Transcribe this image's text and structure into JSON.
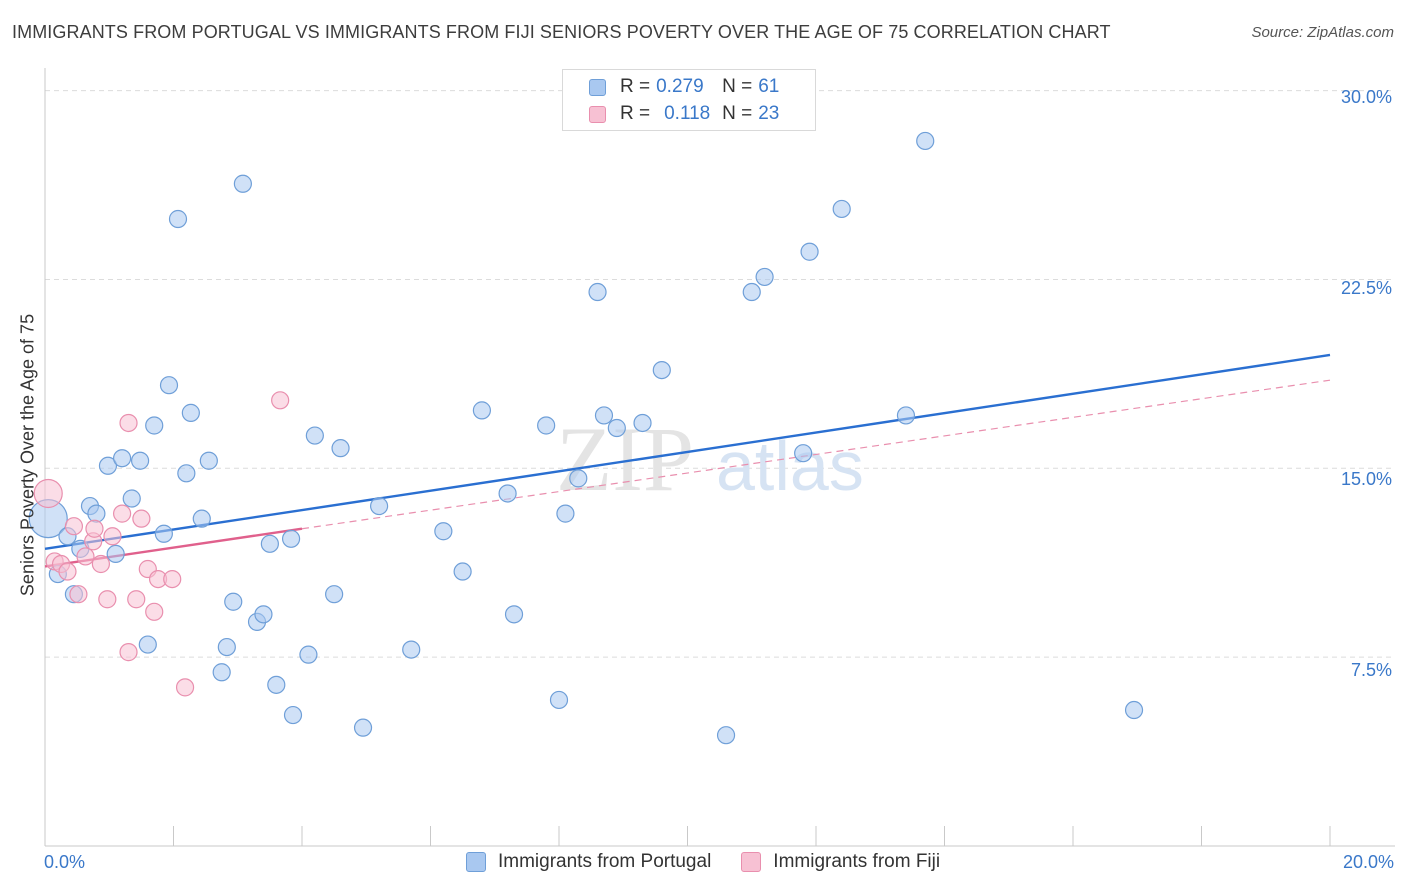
{
  "title": "IMMIGRANTS FROM PORTUGAL VS IMMIGRANTS FROM FIJI SENIORS POVERTY OVER THE AGE OF 75 CORRELATION CHART",
  "source": "Source: ZipAtlas.com",
  "watermark": {
    "zip": "ZIP",
    "atlas": "atlas"
  },
  "legend_top": {
    "rows": [
      {
        "r_label": "R =",
        "r_value": "0.279",
        "n_label": "N =",
        "n_value": "61",
        "color": "#a9c8f0",
        "border": "#6f9fd8"
      },
      {
        "r_label": "R =",
        "r_value": "0.118",
        "n_label": "N =",
        "n_value": "23",
        "color": "#f7c1d3",
        "border": "#e98fae"
      }
    ]
  },
  "chart_data": {
    "type": "scatter",
    "title": "IMMIGRANTS FROM PORTUGAL VS IMMIGRANTS FROM FIJI SENIORS POVERTY OVER THE AGE OF 75 CORRELATION CHART",
    "xlabel": "",
    "ylabel": "Seniors Poverty Over the Age of 75",
    "xlim": [
      0,
      20
    ],
    "ylim": [
      0,
      30.5
    ],
    "x_tick_labels": [
      "0.0%",
      "20.0%"
    ],
    "y_ticks": [
      7.5,
      15.0,
      22.5,
      30.0
    ],
    "y_tick_labels": [
      "7.5%",
      "15.0%",
      "22.5%",
      "30.0%"
    ],
    "legend_position": "top-center",
    "series": [
      {
        "name": "Immigrants from Portugal",
        "color": "#a9c8f0",
        "edge": "#6f9fd8",
        "trend": {
          "x1": 0,
          "y1": 11.8,
          "x2": 20,
          "y2": 19.5,
          "color": "#2a6fd1"
        },
        "points": [
          [
            0.05,
            13.0
          ],
          [
            0.2,
            10.8
          ],
          [
            0.35,
            12.3
          ],
          [
            0.45,
            10.0
          ],
          [
            0.55,
            11.8
          ],
          [
            0.7,
            13.5
          ],
          [
            0.8,
            13.2
          ],
          [
            0.98,
            15.1
          ],
          [
            1.1,
            11.6
          ],
          [
            1.2,
            15.4
          ],
          [
            1.35,
            13.8
          ],
          [
            1.48,
            15.3
          ],
          [
            1.6,
            8.0
          ],
          [
            1.7,
            16.7
          ],
          [
            1.85,
            12.4
          ],
          [
            1.93,
            18.3
          ],
          [
            2.07,
            24.9
          ],
          [
            2.2,
            14.8
          ],
          [
            2.27,
            17.2
          ],
          [
            2.44,
            13.0
          ],
          [
            2.55,
            15.3
          ],
          [
            2.75,
            6.9
          ],
          [
            2.83,
            7.9
          ],
          [
            2.93,
            9.7
          ],
          [
            3.08,
            26.3
          ],
          [
            3.3,
            8.9
          ],
          [
            3.4,
            9.2
          ],
          [
            3.5,
            12.0
          ],
          [
            3.6,
            6.4
          ],
          [
            3.83,
            12.2
          ],
          [
            3.86,
            5.2
          ],
          [
            4.1,
            7.6
          ],
          [
            4.2,
            16.3
          ],
          [
            4.5,
            10.0
          ],
          [
            4.6,
            15.8
          ],
          [
            4.95,
            4.7
          ],
          [
            5.2,
            13.5
          ],
          [
            5.7,
            7.8
          ],
          [
            6.2,
            12.5
          ],
          [
            6.5,
            10.9
          ],
          [
            6.8,
            17.3
          ],
          [
            7.2,
            14.0
          ],
          [
            7.3,
            9.2
          ],
          [
            7.8,
            16.7
          ],
          [
            8.0,
            5.8
          ],
          [
            8.1,
            13.2
          ],
          [
            8.3,
            14.6
          ],
          [
            8.6,
            22.0
          ],
          [
            8.7,
            17.1
          ],
          [
            8.9,
            16.6
          ],
          [
            9.3,
            16.8
          ],
          [
            9.6,
            18.9
          ],
          [
            10.6,
            4.4
          ],
          [
            11.0,
            22.0
          ],
          [
            11.2,
            22.6
          ],
          [
            11.8,
            15.6
          ],
          [
            11.9,
            23.6
          ],
          [
            12.4,
            25.3
          ],
          [
            13.4,
            17.1
          ],
          [
            13.7,
            28.0
          ],
          [
            16.95,
            5.4
          ]
        ]
      },
      {
        "name": "Immigrants from Fiji",
        "color": "#f7c1d3",
        "edge": "#e98fae",
        "trend": {
          "x1": 0,
          "y1": 11.1,
          "x2": 4.0,
          "y2": 12.6,
          "color": "#e0608c"
        },
        "trend_extension": {
          "x1": 4.0,
          "y1": 12.6,
          "x2": 20,
          "y2": 18.5,
          "color": "#e98fae"
        },
        "points": [
          [
            0.05,
            14.0
          ],
          [
            0.15,
            11.3
          ],
          [
            0.25,
            11.2
          ],
          [
            0.35,
            10.9
          ],
          [
            0.45,
            12.7
          ],
          [
            0.52,
            10.0
          ],
          [
            0.63,
            11.5
          ],
          [
            0.75,
            12.1
          ],
          [
            0.77,
            12.6
          ],
          [
            0.87,
            11.2
          ],
          [
            0.97,
            9.8
          ],
          [
            1.05,
            12.3
          ],
          [
            1.2,
            13.2
          ],
          [
            1.3,
            16.8
          ],
          [
            1.3,
            7.7
          ],
          [
            1.42,
            9.8
          ],
          [
            1.5,
            13.0
          ],
          [
            1.6,
            11.0
          ],
          [
            1.7,
            9.3
          ],
          [
            1.76,
            10.6
          ],
          [
            1.98,
            10.6
          ],
          [
            2.18,
            6.3
          ],
          [
            3.66,
            17.7
          ]
        ]
      }
    ]
  },
  "legend_bottom": {
    "items": [
      {
        "label": "Immigrants from Portugal",
        "color": "#a9c8f0",
        "border": "#6f9fd8"
      },
      {
        "label": "Immigrants from Fiji",
        "color": "#f7c1d3",
        "border": "#e98fae"
      }
    ]
  }
}
